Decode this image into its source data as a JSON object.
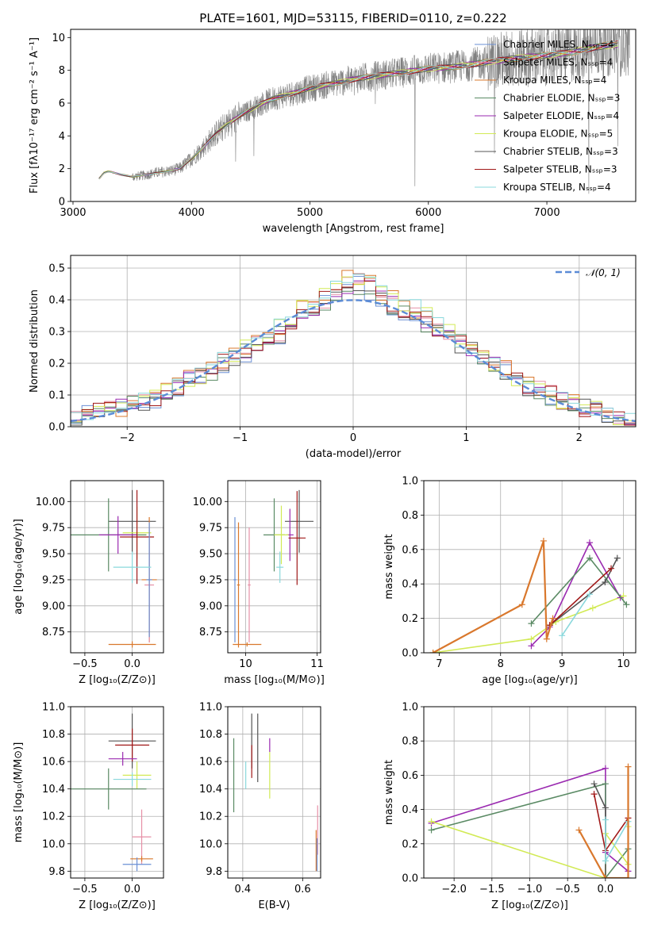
{
  "colors": {
    "chabrier_miles": "#6a8fd4",
    "salpeter_miles": "#e68fa6",
    "kroupa_miles": "#d9782d",
    "chabrier_elodie": "#5a8a64",
    "salpeter_elodie": "#9a2ab0",
    "kroupa_elodie": "#d2ea55",
    "chabrier_stelib": "#545454",
    "salpeter_stelib": "#a01818",
    "kroupa_stelib": "#8ad8dc",
    "data": "#808080",
    "normal": "#5b8bd6"
  },
  "chart_data": [
    {
      "id": "spectrum",
      "type": "line",
      "title": "PLATE=1601, MJD=53115, FIBERID=0110, z=0.222",
      "xlabel": "wavelength [Angstrom, rest frame]",
      "ylabel": "Flux [fλ10⁻¹⁷ erg cm⁻² s⁻¹ A⁻¹]",
      "xlim": [
        2980,
        7750
      ],
      "ylim": [
        0,
        10.5
      ],
      "xticks": [
        "3000",
        "4000",
        "5000",
        "6000",
        "7000"
      ],
      "yticks": [
        "0",
        "2",
        "4",
        "6",
        "8",
        "10"
      ],
      "legend": [
        "Chabrier MILES, Nₛₛₚ=4",
        "Salpeter MILES, Nₛₛₚ=4",
        "Kroupa MILES, Nₛₛₚ=4",
        "Chabrier ELODIE, Nₛₛₚ=3",
        "Salpeter ELODIE, Nₛₛₚ=4",
        "Kroupa ELODIE, Nₛₛₚ=5",
        "Chabrier STELIB, Nₛₛₚ=3",
        "Salpeter STELIB, Nₛₛₚ=3",
        "Kroupa STELIB, Nₛₛₚ=4"
      ],
      "legend_placement": "upper-right",
      "model_curve": {
        "wavelength": [
          3220,
          3260,
          3300,
          3400,
          3500,
          3600,
          3700,
          3800,
          3900,
          4000,
          4100,
          4200,
          4300,
          4400,
          4500,
          4600,
          4700,
          4800,
          4900,
          5000,
          5200,
          5400,
          5600,
          5800,
          6000,
          6200,
          6400,
          6600,
          6800,
          7000,
          7200,
          7400,
          7600
        ],
        "flux": [
          1.4,
          1.75,
          1.85,
          1.65,
          1.5,
          1.6,
          1.75,
          1.85,
          2.0,
          2.6,
          3.3,
          4.1,
          4.7,
          5.2,
          5.6,
          6.0,
          6.3,
          6.5,
          6.7,
          6.9,
          7.2,
          7.5,
          7.7,
          7.9,
          8.1,
          8.2,
          8.4,
          8.6,
          8.8,
          8.9,
          9.1,
          9.4,
          9.6
        ]
      }
    },
    {
      "id": "residuals",
      "type": "histogram",
      "xlabel": "(data-model)/error",
      "ylabel": "Normed distribution",
      "xlim": [
        -2.5,
        2.5
      ],
      "ylim": [
        0,
        0.54
      ],
      "xticks": [
        "−2",
        "−1",
        "0",
        "1",
        "2"
      ],
      "yticks": [
        "0.0",
        "0.1",
        "0.2",
        "0.3",
        "0.4",
        "0.5"
      ],
      "legend": [
        "𝒩(0, 1)"
      ],
      "legend_placement": "upper-right",
      "bin_width": 0.1,
      "bin_start": -2.5,
      "base_density": [
        0.03,
        0.04,
        0.05,
        0.05,
        0.06,
        0.07,
        0.08,
        0.09,
        0.11,
        0.13,
        0.15,
        0.16,
        0.18,
        0.2,
        0.22,
        0.24,
        0.26,
        0.28,
        0.3,
        0.33,
        0.36,
        0.38,
        0.4,
        0.42,
        0.45,
        0.46,
        0.44,
        0.41,
        0.39,
        0.37,
        0.36,
        0.34,
        0.31,
        0.29,
        0.27,
        0.25,
        0.22,
        0.2,
        0.18,
        0.15,
        0.13,
        0.12,
        0.1,
        0.08,
        0.07,
        0.06,
        0.05,
        0.04,
        0.03,
        0.02
      ]
    },
    {
      "id": "age_vs_Z",
      "type": "errorbar",
      "xlabel": "Z [log₁₀(Z/Z⊙)]",
      "ylabel": "age  [log₁₀(age/yr)]",
      "xlim": [
        -0.65,
        0.33
      ],
      "ylim": [
        8.55,
        10.2
      ],
      "xticks": [
        "−0.5",
        "0.0"
      ],
      "yticks": [
        "8.75",
        "9.00",
        "9.25",
        "9.50",
        "9.75",
        "10.00"
      ],
      "points": [
        {
          "model": "chabrier_stelib",
          "x": 0.0,
          "xerr": 0.25,
          "y": 9.81,
          "yerr": 0.3
        },
        {
          "model": "chabrier_elodie",
          "x": -0.25,
          "xerr": 0.4,
          "y": 9.68,
          "yerr": 0.35
        },
        {
          "model": "salpeter_elodie",
          "x": -0.15,
          "xerr": 0.2,
          "y": 9.68,
          "yerr": 0.18
        },
        {
          "model": "kroupa_elodie",
          "x": 0.05,
          "xerr": 0.15,
          "y": 9.7,
          "yerr": 0.25
        },
        {
          "model": "salpeter_stelib",
          "x": 0.05,
          "xerr": 0.18,
          "y": 9.66,
          "yerr": 0.45
        },
        {
          "model": "kroupa_miles",
          "x": 0.18,
          "xerr": 0.08,
          "y": 9.25,
          "yerr": 0.6
        },
        {
          "model": "salpeter_miles",
          "x": 0.18,
          "xerr": 0.05,
          "y": 9.2,
          "yerr": 0.55
        },
        {
          "model": "chabrier_miles",
          "x": 0.18,
          "xerr": 0.03,
          "y": 9.25,
          "yerr": 0.55
        },
        {
          "model": "kroupa_stelib",
          "x": 0.0,
          "xerr": 0.2,
          "y": 9.37,
          "yerr": 0.15
        },
        {
          "model": "kroupa_miles",
          "x": 0.0,
          "xerr": 0.25,
          "y": 8.63,
          "yerr": 0.03
        }
      ]
    },
    {
      "id": "age_vs_mass",
      "type": "errorbar",
      "xlabel": "mass [log₁₀(M/M⊙)]",
      "ylabel": "",
      "xlim": [
        9.75,
        11.05
      ],
      "ylim": [
        8.55,
        10.2
      ],
      "xticks": [
        "10",
        "11"
      ],
      "yticks": [
        "8.75",
        "9.00",
        "9.25",
        "9.50",
        "9.75",
        "10.00"
      ],
      "points": [
        {
          "model": "chabrier_stelib",
          "x": 10.75,
          "xerr": 0.2,
          "y": 9.81,
          "yerr": 0.3
        },
        {
          "model": "chabrier_elodie",
          "x": 10.4,
          "xerr": 0.15,
          "y": 9.68,
          "yerr": 0.35
        },
        {
          "model": "salpeter_elodie",
          "x": 10.62,
          "xerr": 0.05,
          "y": 9.68,
          "yerr": 0.25
        },
        {
          "model": "kroupa_elodie",
          "x": 10.5,
          "xerr": 0.1,
          "y": 9.68,
          "yerr": 0.28
        },
        {
          "model": "salpeter_stelib",
          "x": 10.72,
          "xerr": 0.12,
          "y": 9.65,
          "yerr": 0.45
        },
        {
          "model": "kroupa_stelib",
          "x": 10.48,
          "xerr": 0.05,
          "y": 9.37,
          "yerr": 0.15
        },
        {
          "model": "salpeter_miles",
          "x": 10.05,
          "xerr": 0.02,
          "y": 9.2,
          "yerr": 0.55
        },
        {
          "model": "chabrier_miles",
          "x": 9.85,
          "xerr": 0.02,
          "y": 9.25,
          "yerr": 0.6
        },
        {
          "model": "kroupa_miles",
          "x": 9.9,
          "xerr": 0.02,
          "y": 9.2,
          "yerr": 0.6
        },
        {
          "model": "kroupa_miles",
          "x": 10.02,
          "xerr": 0.2,
          "y": 8.63,
          "yerr": 0.02
        }
      ]
    },
    {
      "id": "weight_vs_age",
      "type": "line",
      "xlabel": "age  [log₁₀(age/yr)]",
      "ylabel": "mass weight",
      "xlim": [
        6.75,
        10.2
      ],
      "ylim": [
        0,
        1.0
      ],
      "xticks": [
        "7",
        "8",
        "9",
        "10"
      ],
      "yticks": [
        "0.0",
        "0.2",
        "0.4",
        "0.6",
        "0.8",
        "1.0"
      ],
      "series": [
        {
          "model": "kroupa_elodie",
          "x": [
            6.9,
            8.5,
            8.9,
            9.5,
            10.0
          ],
          "y": [
            0.0,
            0.08,
            0.18,
            0.26,
            0.33
          ]
        },
        {
          "model": "salpeter_elodie",
          "x": [
            8.5,
            8.8,
            9.45,
            9.95
          ],
          "y": [
            0.04,
            0.15,
            0.64,
            0.32
          ]
        },
        {
          "model": "chabrier_elodie",
          "x": [
            8.5,
            9.45,
            10.05
          ],
          "y": [
            0.17,
            0.55,
            0.28
          ]
        },
        {
          "model": "chabrier_stelib",
          "x": [
            8.8,
            9.7,
            9.9
          ],
          "y": [
            0.16,
            0.41,
            0.55
          ]
        },
        {
          "model": "salpeter_stelib",
          "x": [
            8.8,
            9.8
          ],
          "y": [
            0.16,
            0.49
          ]
        },
        {
          "model": "kroupa_stelib",
          "x": [
            9.0,
            9.45
          ],
          "y": [
            0.1,
            0.34
          ]
        },
        {
          "model": "kroupa_miles",
          "x": [
            6.9,
            8.35,
            8.7,
            8.75,
            8.85
          ],
          "y": [
            0.0,
            0.28,
            0.65,
            0.08,
            0.2
          ]
        }
      ]
    },
    {
      "id": "mass_vs_Z",
      "type": "errorbar",
      "xlabel": "Z [log₁₀(Z/Z⊙)]",
      "ylabel": "mass [log₁₀(M/M⊙)]",
      "xlim": [
        -0.65,
        0.33
      ],
      "ylim": [
        9.75,
        11.0
      ],
      "xticks": [
        "−0.5",
        "0.0"
      ],
      "yticks": [
        "9.8",
        "10.0",
        "10.2",
        "10.4",
        "10.6",
        "10.8",
        "11.0"
      ],
      "points": [
        {
          "model": "chabrier_stelib",
          "x": 0.0,
          "xerr": 0.25,
          "y": 10.75,
          "yerr": 0.2
        },
        {
          "model": "salpeter_stelib",
          "x": 0.0,
          "xerr": 0.18,
          "y": 10.72,
          "yerr": 0.12
        },
        {
          "model": "salpeter_elodie",
          "x": -0.1,
          "xerr": 0.15,
          "y": 10.62,
          "yerr": 0.05
        },
        {
          "model": "kroupa_elodie",
          "x": 0.05,
          "xerr": 0.15,
          "y": 10.5,
          "yerr": 0.1
        },
        {
          "model": "kroupa_stelib",
          "x": 0.0,
          "xerr": 0.2,
          "y": 10.47,
          "yerr": 0.05
        },
        {
          "model": "chabrier_elodie",
          "x": -0.25,
          "xerr": 0.4,
          "y": 10.4,
          "yerr": 0.15
        },
        {
          "model": "salpeter_miles",
          "x": 0.1,
          "xerr": 0.1,
          "y": 10.05,
          "yerr": 0.2
        },
        {
          "model": "kroupa_miles",
          "x": 0.1,
          "xerr": 0.12,
          "y": 9.89,
          "yerr": 0.02
        },
        {
          "model": "chabrier_miles",
          "x": 0.05,
          "xerr": 0.15,
          "y": 9.85,
          "yerr": 0.05
        }
      ]
    },
    {
      "id": "mass_vs_EBV",
      "type": "errorbar",
      "xlabel": "E(B-V)",
      "ylabel": "",
      "xlim": [
        0.35,
        0.66
      ],
      "ylim": [
        9.75,
        11.0
      ],
      "xticks": [
        "0.4",
        "0.6"
      ],
      "yticks": [
        "9.8",
        "10.0",
        "10.2",
        "10.4",
        "10.6",
        "10.8",
        "11.0"
      ],
      "points": [
        {
          "model": "chabrier_elodie",
          "x": 0.37,
          "xerr": 0.0,
          "y": 10.5,
          "yerr": 0.27
        },
        {
          "model": "kroupa_stelib",
          "x": 0.41,
          "xerr": 0.0,
          "y": 10.5,
          "yerr": 0.1
        },
        {
          "model": "chabrier_stelib",
          "x": 0.43,
          "xerr": 0.0,
          "y": 10.75,
          "yerr": 0.2
        },
        {
          "model": "salpeter_stelib",
          "x": 0.43,
          "xerr": 0.0,
          "y": 10.6,
          "yerr": 0.12
        },
        {
          "model": "chabrier_stelib",
          "x": 0.45,
          "xerr": 0.0,
          "y": 10.7,
          "yerr": 0.25
        },
        {
          "model": "salpeter_elodie",
          "x": 0.49,
          "xerr": 0.0,
          "y": 10.72,
          "yerr": 0.05
        },
        {
          "model": "kroupa_elodie",
          "x": 0.49,
          "xerr": 0.0,
          "y": 10.5,
          "yerr": 0.17
        },
        {
          "model": "salpeter_miles",
          "x": 0.65,
          "xerr": 0.0,
          "y": 10.1,
          "yerr": 0.18
        },
        {
          "model": "kroupa_miles",
          "x": 0.645,
          "xerr": 0.0,
          "y": 9.95,
          "yerr": 0.15
        },
        {
          "model": "chabrier_miles",
          "x": 0.648,
          "xerr": 0.0,
          "y": 9.92,
          "yerr": 0.12
        }
      ]
    },
    {
      "id": "weight_vs_Z",
      "type": "line",
      "xlabel": "Z [log₁₀(Z/Z⊙)]",
      "ylabel": "mass weight",
      "xlim": [
        -2.4,
        0.4
      ],
      "ylim": [
        0,
        1.0
      ],
      "xticks": [
        "−2.0",
        "−1.5",
        "−1.0",
        "−0.5",
        "0.0"
      ],
      "yticks": [
        "0.0",
        "0.2",
        "0.4",
        "0.6",
        "0.8",
        "1.0"
      ],
      "series": [
        {
          "model": "salpeter_elodie",
          "x": [
            -2.3,
            0.0,
            0.0,
            0.3
          ],
          "y": [
            0.32,
            0.64,
            0.15,
            0.04
          ]
        },
        {
          "model": "chabrier_elodie",
          "x": [
            -2.3,
            0.0,
            0.0,
            0.3
          ],
          "y": [
            0.28,
            0.55,
            0.0,
            0.17
          ]
        },
        {
          "model": "kroupa_elodie",
          "x": [
            -2.3,
            0.0,
            0.0,
            0.3,
            0.3
          ],
          "y": [
            0.33,
            0.0,
            0.26,
            0.08,
            0.3
          ]
        },
        {
          "model": "chabrier_stelib",
          "x": [
            -0.15,
            0.0,
            0.0
          ],
          "y": [
            0.55,
            0.41,
            0.0
          ]
        },
        {
          "model": "salpeter_stelib",
          "x": [
            -0.15,
            0.0,
            0.3
          ],
          "y": [
            0.49,
            0.16,
            0.35
          ]
        },
        {
          "model": "kroupa_stelib",
          "x": [
            0.0,
            0.0,
            0.3
          ],
          "y": [
            0.34,
            0.1,
            0.33
          ]
        },
        {
          "model": "kroupa_miles",
          "x": [
            -0.35,
            0.0,
            0.3,
            0.3
          ],
          "y": [
            0.28,
            0.0,
            0.0,
            0.65
          ]
        }
      ]
    }
  ]
}
